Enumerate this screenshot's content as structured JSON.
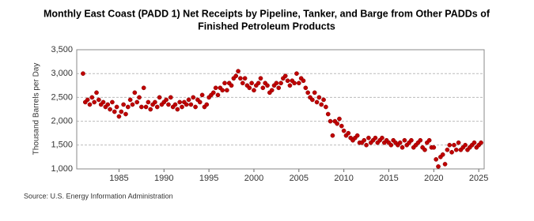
{
  "chart_data": {
    "type": "scatter",
    "title": "Monthly East Coast (PADD 1) Net Receipts by Pipeline, Tanker, and Barge from Other PADDs of",
    "title_line2": "Finished Petroleum Products",
    "y_label": "Thousand Barrels per Day",
    "source": "Source: U.S. Energy Information Administration",
    "color": "#c00000",
    "grid": true,
    "xlim": [
      1980.3,
      2025.6
    ],
    "xticks": [
      1985,
      1990,
      1995,
      2000,
      2005,
      2010,
      2015,
      2020,
      2025
    ],
    "ylim": [
      1000,
      3500
    ],
    "yticks": [
      {
        "value": 1000,
        "label": "1,000"
      },
      {
        "value": 1500,
        "label": "1,500"
      },
      {
        "value": 2000,
        "label": "2,000"
      },
      {
        "value": 2500,
        "label": "2,500"
      },
      {
        "value": 3000,
        "label": "3,000"
      },
      {
        "value": 3500,
        "label": "3,500"
      }
    ],
    "x": [
      1981,
      1981.25,
      1981.5,
      1981.75,
      1982,
      1982.25,
      1982.5,
      1982.75,
      1983,
      1983.25,
      1983.5,
      1983.75,
      1984,
      1984.25,
      1984.5,
      1984.75,
      1985,
      1985.25,
      1985.5,
      1985.75,
      1986,
      1986.25,
      1986.5,
      1986.75,
      1987,
      1987.25,
      1987.5,
      1987.75,
      1988,
      1988.25,
      1988.5,
      1988.75,
      1989,
      1989.25,
      1989.5,
      1989.75,
      1990,
      1990.25,
      1990.5,
      1990.75,
      1991,
      1991.25,
      1991.5,
      1991.75,
      1992,
      1992.25,
      1992.5,
      1992.75,
      1993,
      1993.25,
      1993.5,
      1993.75,
      1994,
      1994.25,
      1994.5,
      1994.75,
      1995,
      1995.25,
      1995.5,
      1995.75,
      1996,
      1996.25,
      1996.5,
      1996.75,
      1997,
      1997.25,
      1997.5,
      1997.75,
      1998,
      1998.25,
      1998.5,
      1998.75,
      1999,
      1999.25,
      1999.5,
      1999.75,
      2000,
      2000.25,
      2000.5,
      2000.75,
      2001,
      2001.25,
      2001.5,
      2001.75,
      2002,
      2002.25,
      2002.5,
      2002.75,
      2003,
      2003.25,
      2003.5,
      2003.75,
      2004,
      2004.25,
      2004.5,
      2004.75,
      2005,
      2005.25,
      2005.5,
      2005.75,
      2006,
      2006.25,
      2006.5,
      2006.75,
      2007,
      2007.25,
      2007.5,
      2007.75,
      2008,
      2008.25,
      2008.5,
      2008.75,
      2009,
      2009.25,
      2009.5,
      2009.75,
      2010,
      2010.25,
      2010.5,
      2010.75,
      2011,
      2011.25,
      2011.5,
      2011.75,
      2012,
      2012.25,
      2012.5,
      2012.75,
      2013,
      2013.25,
      2013.5,
      2013.75,
      2014,
      2014.25,
      2014.5,
      2014.75,
      2015,
      2015.25,
      2015.5,
      2015.75,
      2016,
      2016.25,
      2016.5,
      2016.75,
      2017,
      2017.25,
      2017.5,
      2017.75,
      2018,
      2018.25,
      2018.5,
      2018.75,
      2019,
      2019.25,
      2019.5,
      2019.75,
      2020,
      2020.25,
      2020.5,
      2020.75,
      2021,
      2021.25,
      2021.5,
      2021.75,
      2022,
      2022.25,
      2022.5,
      2022.75,
      2023,
      2023.25,
      2023.5,
      2023.75,
      2024,
      2024.25,
      2024.5,
      2024.75,
      2025,
      2025.25
    ],
    "values": [
      3000,
      2400,
      2450,
      2350,
      2500,
      2400,
      2600,
      2450,
      2350,
      2400,
      2300,
      2350,
      2250,
      2400,
      2200,
      2300,
      2100,
      2200,
      2350,
      2150,
      2300,
      2450,
      2350,
      2600,
      2400,
      2500,
      2300,
      2700,
      2300,
      2400,
      2250,
      2350,
      2400,
      2300,
      2500,
      2350,
      2400,
      2450,
      2350,
      2500,
      2300,
      2350,
      2250,
      2400,
      2300,
      2400,
      2350,
      2450,
      2350,
      2500,
      2300,
      2450,
      2400,
      2550,
      2300,
      2350,
      2500,
      2550,
      2600,
      2700,
      2550,
      2700,
      2650,
      2800,
      2650,
      2800,
      2750,
      2900,
      2950,
      3050,
      2900,
      2800,
      2900,
      2750,
      2700,
      2800,
      2650,
      2750,
      2800,
      2900,
      2700,
      2800,
      2750,
      2600,
      2650,
      2750,
      2800,
      2700,
      2800,
      2900,
      2950,
      2850,
      2750,
      2850,
      2800,
      3000,
      2800,
      2900,
      2850,
      2700,
      2600,
      2500,
      2450,
      2600,
      2400,
      2500,
      2350,
      2450,
      2300,
      2150,
      2000,
      1700,
      2000,
      1950,
      2050,
      1900,
      1800,
      1700,
      1750,
      1650,
      1600,
      1650,
      1700,
      1550,
      1550,
      1600,
      1500,
      1650,
      1550,
      1600,
      1650,
      1550,
      1600,
      1650,
      1550,
      1600,
      1550,
      1500,
      1600,
      1550,
      1500,
      1550,
      1450,
      1600,
      1500,
      1550,
      1600,
      1450,
      1500,
      1550,
      1600,
      1450,
      1400,
      1550,
      1600,
      1450,
      1450,
      1200,
      1050,
      1250,
      1300,
      1100,
      1400,
      1500,
      1350,
      1500,
      1400,
      1550,
      1400,
      1450,
      1500,
      1400,
      1450,
      1500,
      1550,
      1450,
      1500,
      1550
    ]
  }
}
